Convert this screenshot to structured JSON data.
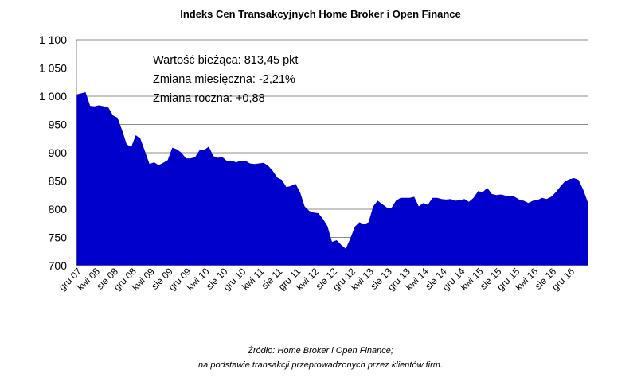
{
  "chart_data": {
    "type": "area",
    "title": "Indeks Cen Transakcyjnych Home Broker i Open Finance",
    "xlabel": "",
    "ylabel": "",
    "ylim": [
      700,
      1100
    ],
    "yticks": [
      700,
      750,
      800,
      850,
      900,
      950,
      1000,
      1050,
      1100
    ],
    "ytick_labels": [
      "700",
      "750",
      "800",
      "850",
      "900",
      "950",
      "1 000",
      "1 050",
      "1 100"
    ],
    "xtick_labels": [
      "gru 07",
      "kwi 08",
      "sie 08",
      "gru 08",
      "kwi 09",
      "sie 09",
      "gru 09",
      "kwi 10",
      "sie 10",
      "gru 10",
      "kwi 11",
      "sie 11",
      "gru 11",
      "kwi 12",
      "sie 12",
      "gru 12",
      "kwi 13",
      "sie 13",
      "gru 13",
      "kwi 14",
      "sie 14",
      "gru 14",
      "kwi 15",
      "sie 15",
      "gru 15",
      "kwi 16",
      "sie 16",
      "gru 16"
    ],
    "xtick_step_months": 4,
    "grid": true,
    "fill_color": "#0000cc",
    "series": [
      {
        "values": [
          1003,
          1005,
          1007,
          983,
          982,
          984,
          982,
          980,
          966,
          962,
          940,
          915,
          910,
          931,
          925,
          903,
          880,
          883,
          878,
          882,
          887,
          909,
          906,
          900,
          890,
          890,
          892,
          905,
          905,
          911,
          894,
          891,
          892,
          885,
          886,
          883,
          886,
          886,
          881,
          880,
          881,
          882,
          877,
          868,
          856,
          852,
          839,
          841,
          845,
          830,
          805,
          797,
          794,
          793,
          783,
          770,
          742,
          745,
          737,
          730,
          748,
          769,
          777,
          773,
          777,
          805,
          815,
          809,
          803,
          802,
          815,
          820,
          820,
          820,
          822,
          805,
          811,
          808,
          820,
          820,
          818,
          817,
          818,
          815,
          816,
          818,
          813,
          820,
          832,
          830,
          838,
          827,
          825,
          826,
          824,
          824,
          822,
          817,
          815,
          811,
          815,
          816,
          820,
          818,
          822,
          830,
          840,
          849,
          853,
          855,
          852,
          835,
          813
        ]
      }
    ],
    "annotations": [
      "Wartość bieżąca: 813,45 pkt",
      "Zmiana miesięczna: -2,21%",
      "Zmiana roczna: +0,88"
    ]
  },
  "source_lines": [
    "Źródło: Home Broker i Open Finance;",
    "na podstawie transakcji przeprowadzonych przez klientów firm."
  ]
}
